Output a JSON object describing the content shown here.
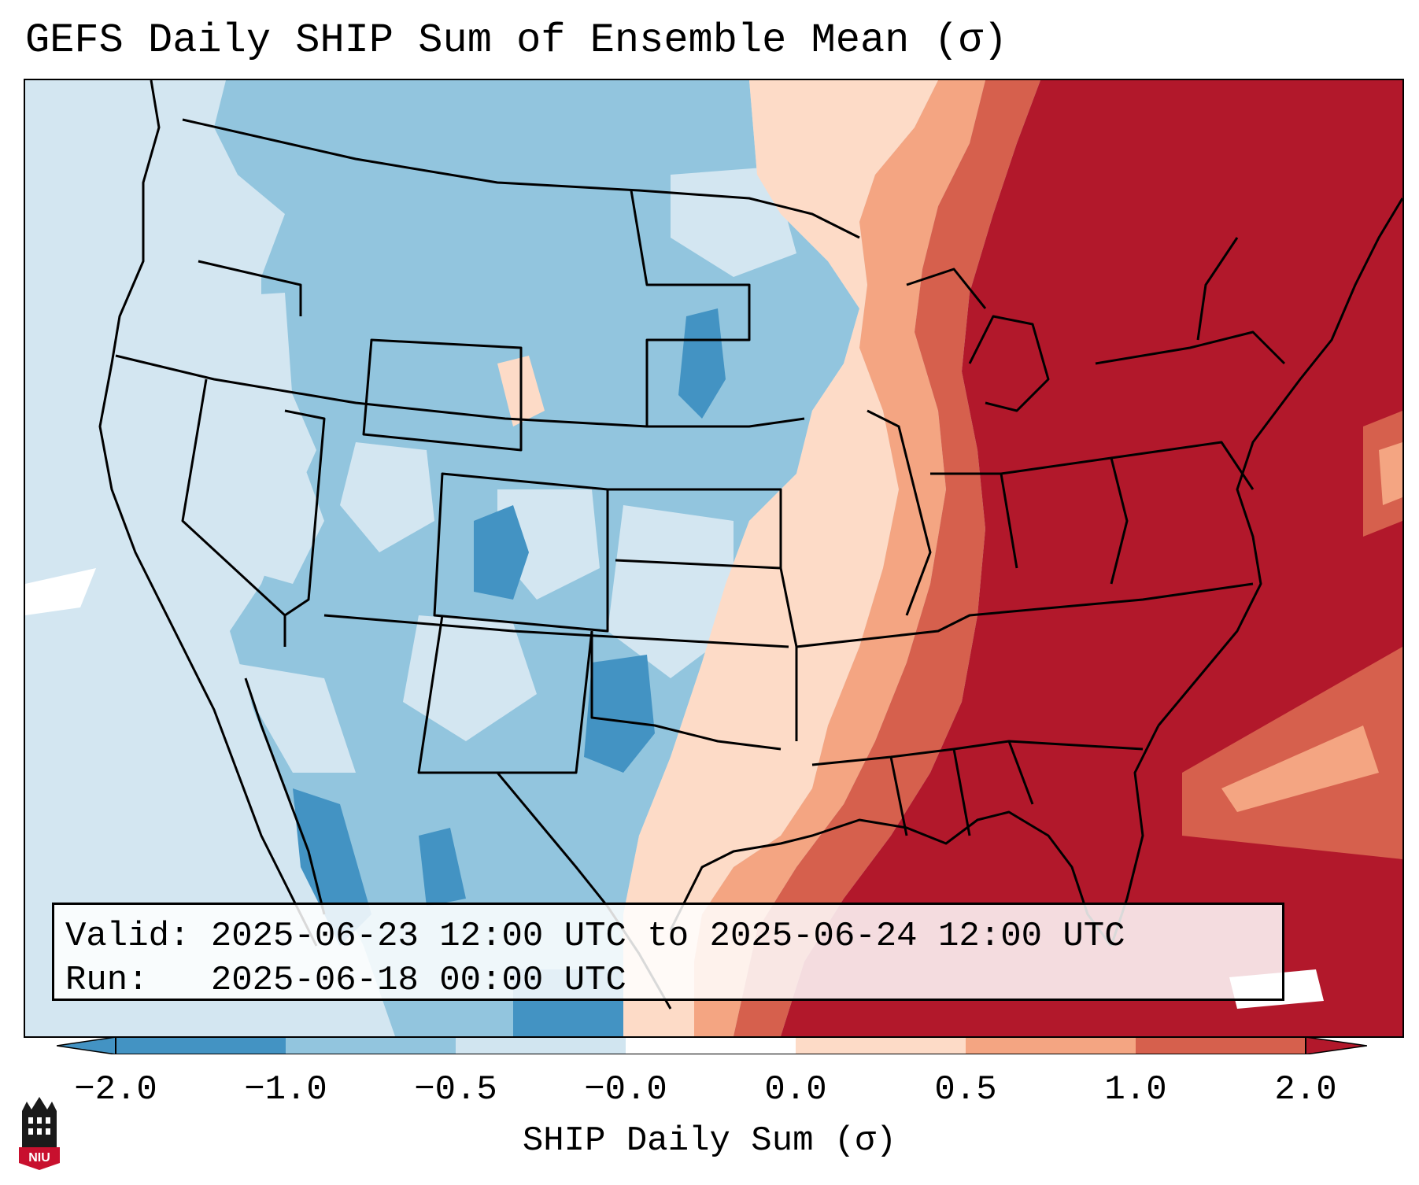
{
  "title": "GEFS Daily SHIP Sum of Ensemble Mean (σ)",
  "info": {
    "valid_line": "Valid: 2025-06-23 12:00 UTC to 2025-06-24 12:00 UTC",
    "run_line": "Run:   2025-06-18 00:00 UTC"
  },
  "colorbar": {
    "label": "SHIP Daily Sum (σ)",
    "ticks": [
      "−2.0",
      "−1.0",
      "−0.5",
      "−0.0",
      "0.0",
      "0.5",
      "1.0",
      "2.0"
    ],
    "colors": [
      "#4393c3",
      "#92c5de",
      "#d1e5f0",
      "#ffffff",
      "#fddbc7",
      "#f4a582",
      "#d6604d",
      "#b2182b"
    ],
    "extend_low_color": "#2166ac",
    "extend_high_color": "#b2182b"
  },
  "logo": {
    "text": "NIU",
    "color": "#c8102e"
  }
}
